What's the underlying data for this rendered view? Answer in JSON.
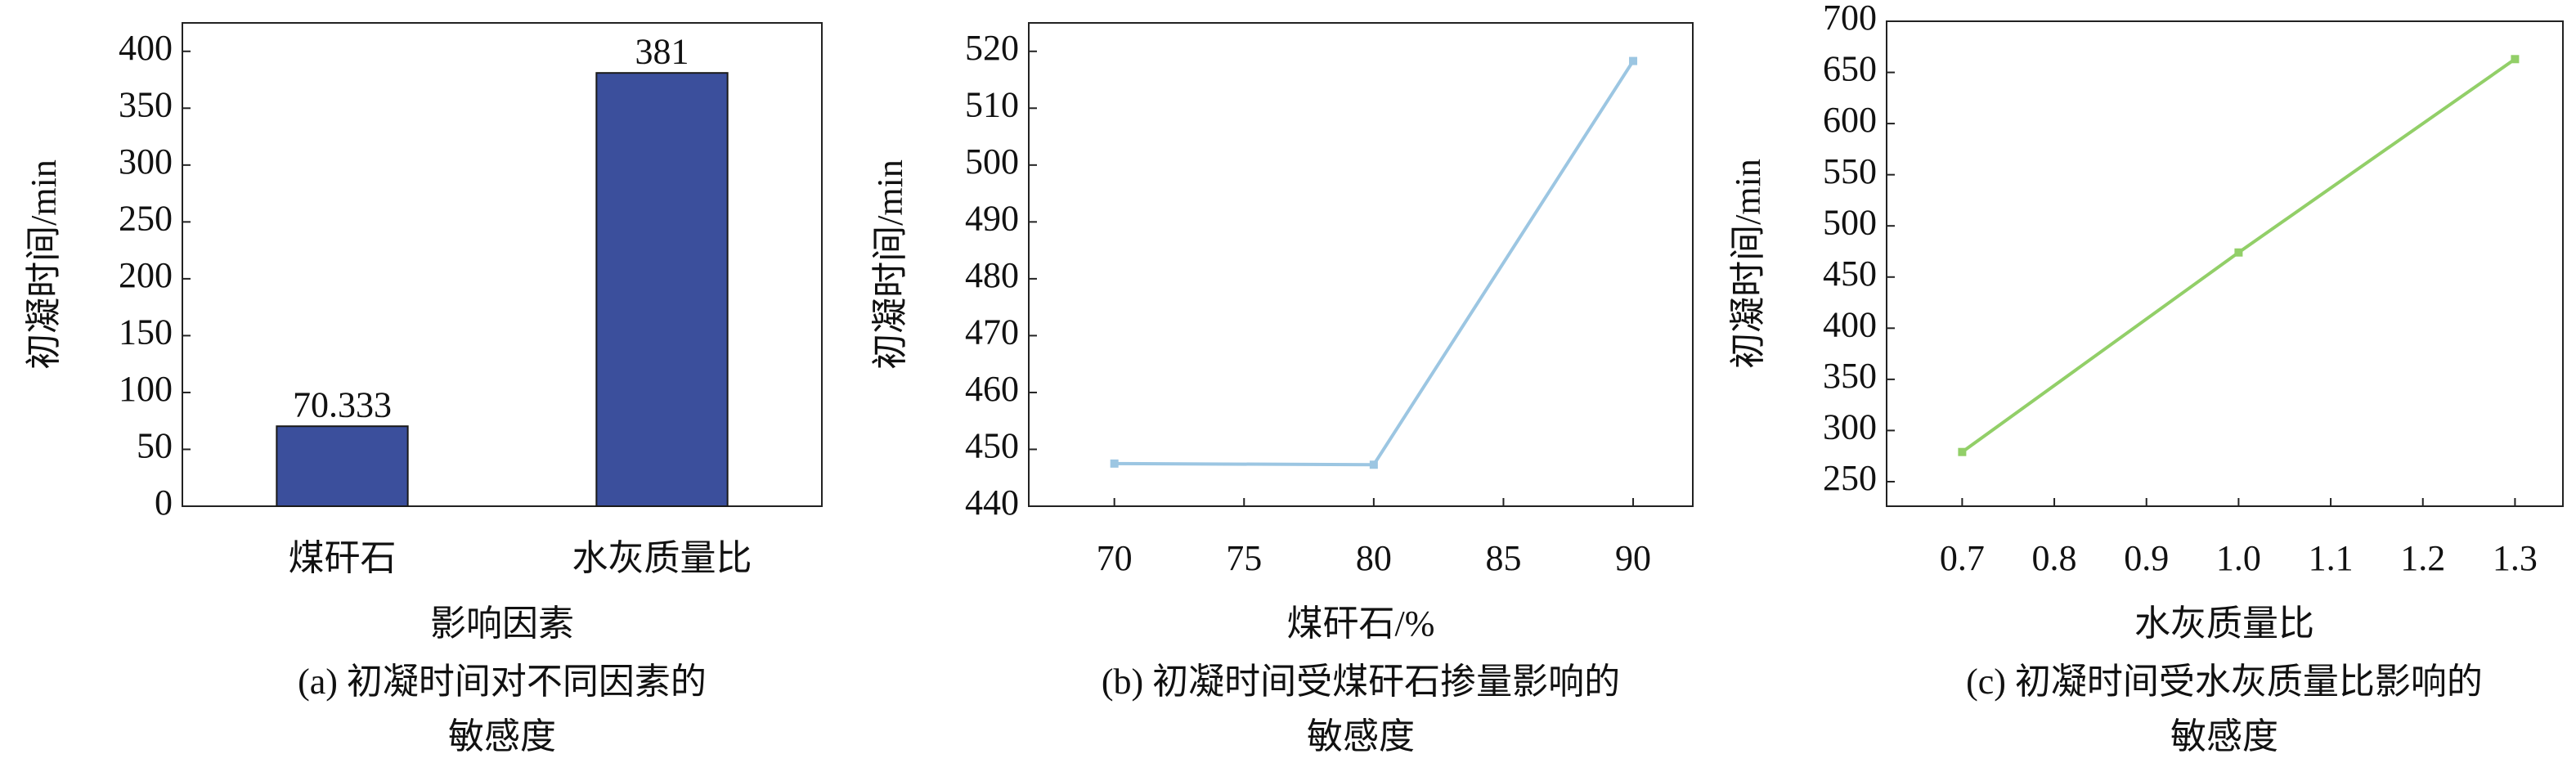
{
  "chart_data": [
    {
      "type": "bar",
      "y_label": "初凝时间/min",
      "x_label": "影响因素",
      "caption": [
        "(a) 初凝时间对不同因素的",
        "敏感度"
      ],
      "categories": [
        "煤矸石",
        "水灰质量比"
      ],
      "values": [
        70.333,
        381
      ],
      "color": "#3b4f9c",
      "ylim": [
        0,
        425
      ],
      "yticks": [
        0,
        50,
        100,
        150,
        200,
        250,
        300,
        350,
        400
      ]
    },
    {
      "type": "line",
      "y_label": "初凝时间/min",
      "x_label": "煤矸石/%",
      "caption": [
        "(b) 初凝时间受煤矸石掺量影响的",
        "敏感度"
      ],
      "x": [
        70,
        80,
        90
      ],
      "values": [
        447.5,
        447.3,
        518.3
      ],
      "color": "#9cc6e2",
      "xlim": [
        66.7,
        92.3
      ],
      "xticks": [
        70,
        75,
        80,
        85,
        90
      ],
      "ylim": [
        440,
        525
      ],
      "yticks": [
        440,
        450,
        460,
        470,
        480,
        490,
        500,
        510,
        520
      ]
    },
    {
      "type": "line",
      "y_label": "初凝时间/min",
      "x_label": "水灰质量比",
      "caption": [
        "(c) 初凝时间受水灰质量比影响的",
        "敏感度"
      ],
      "x": [
        0.7,
        1.0,
        1.3
      ],
      "values": [
        279,
        474,
        663
      ],
      "color": "#92cf68",
      "xlim": [
        0.618,
        1.352
      ],
      "xticks": [
        0.7,
        0.8,
        0.9,
        {
          "value": 1.0,
          "label": "1.0"
        },
        1.1,
        1.2,
        1.3
      ],
      "ylim": [
        226,
        700
      ],
      "yticks": [
        250,
        300,
        350,
        400,
        450,
        500,
        550,
        600,
        650,
        700
      ]
    }
  ]
}
